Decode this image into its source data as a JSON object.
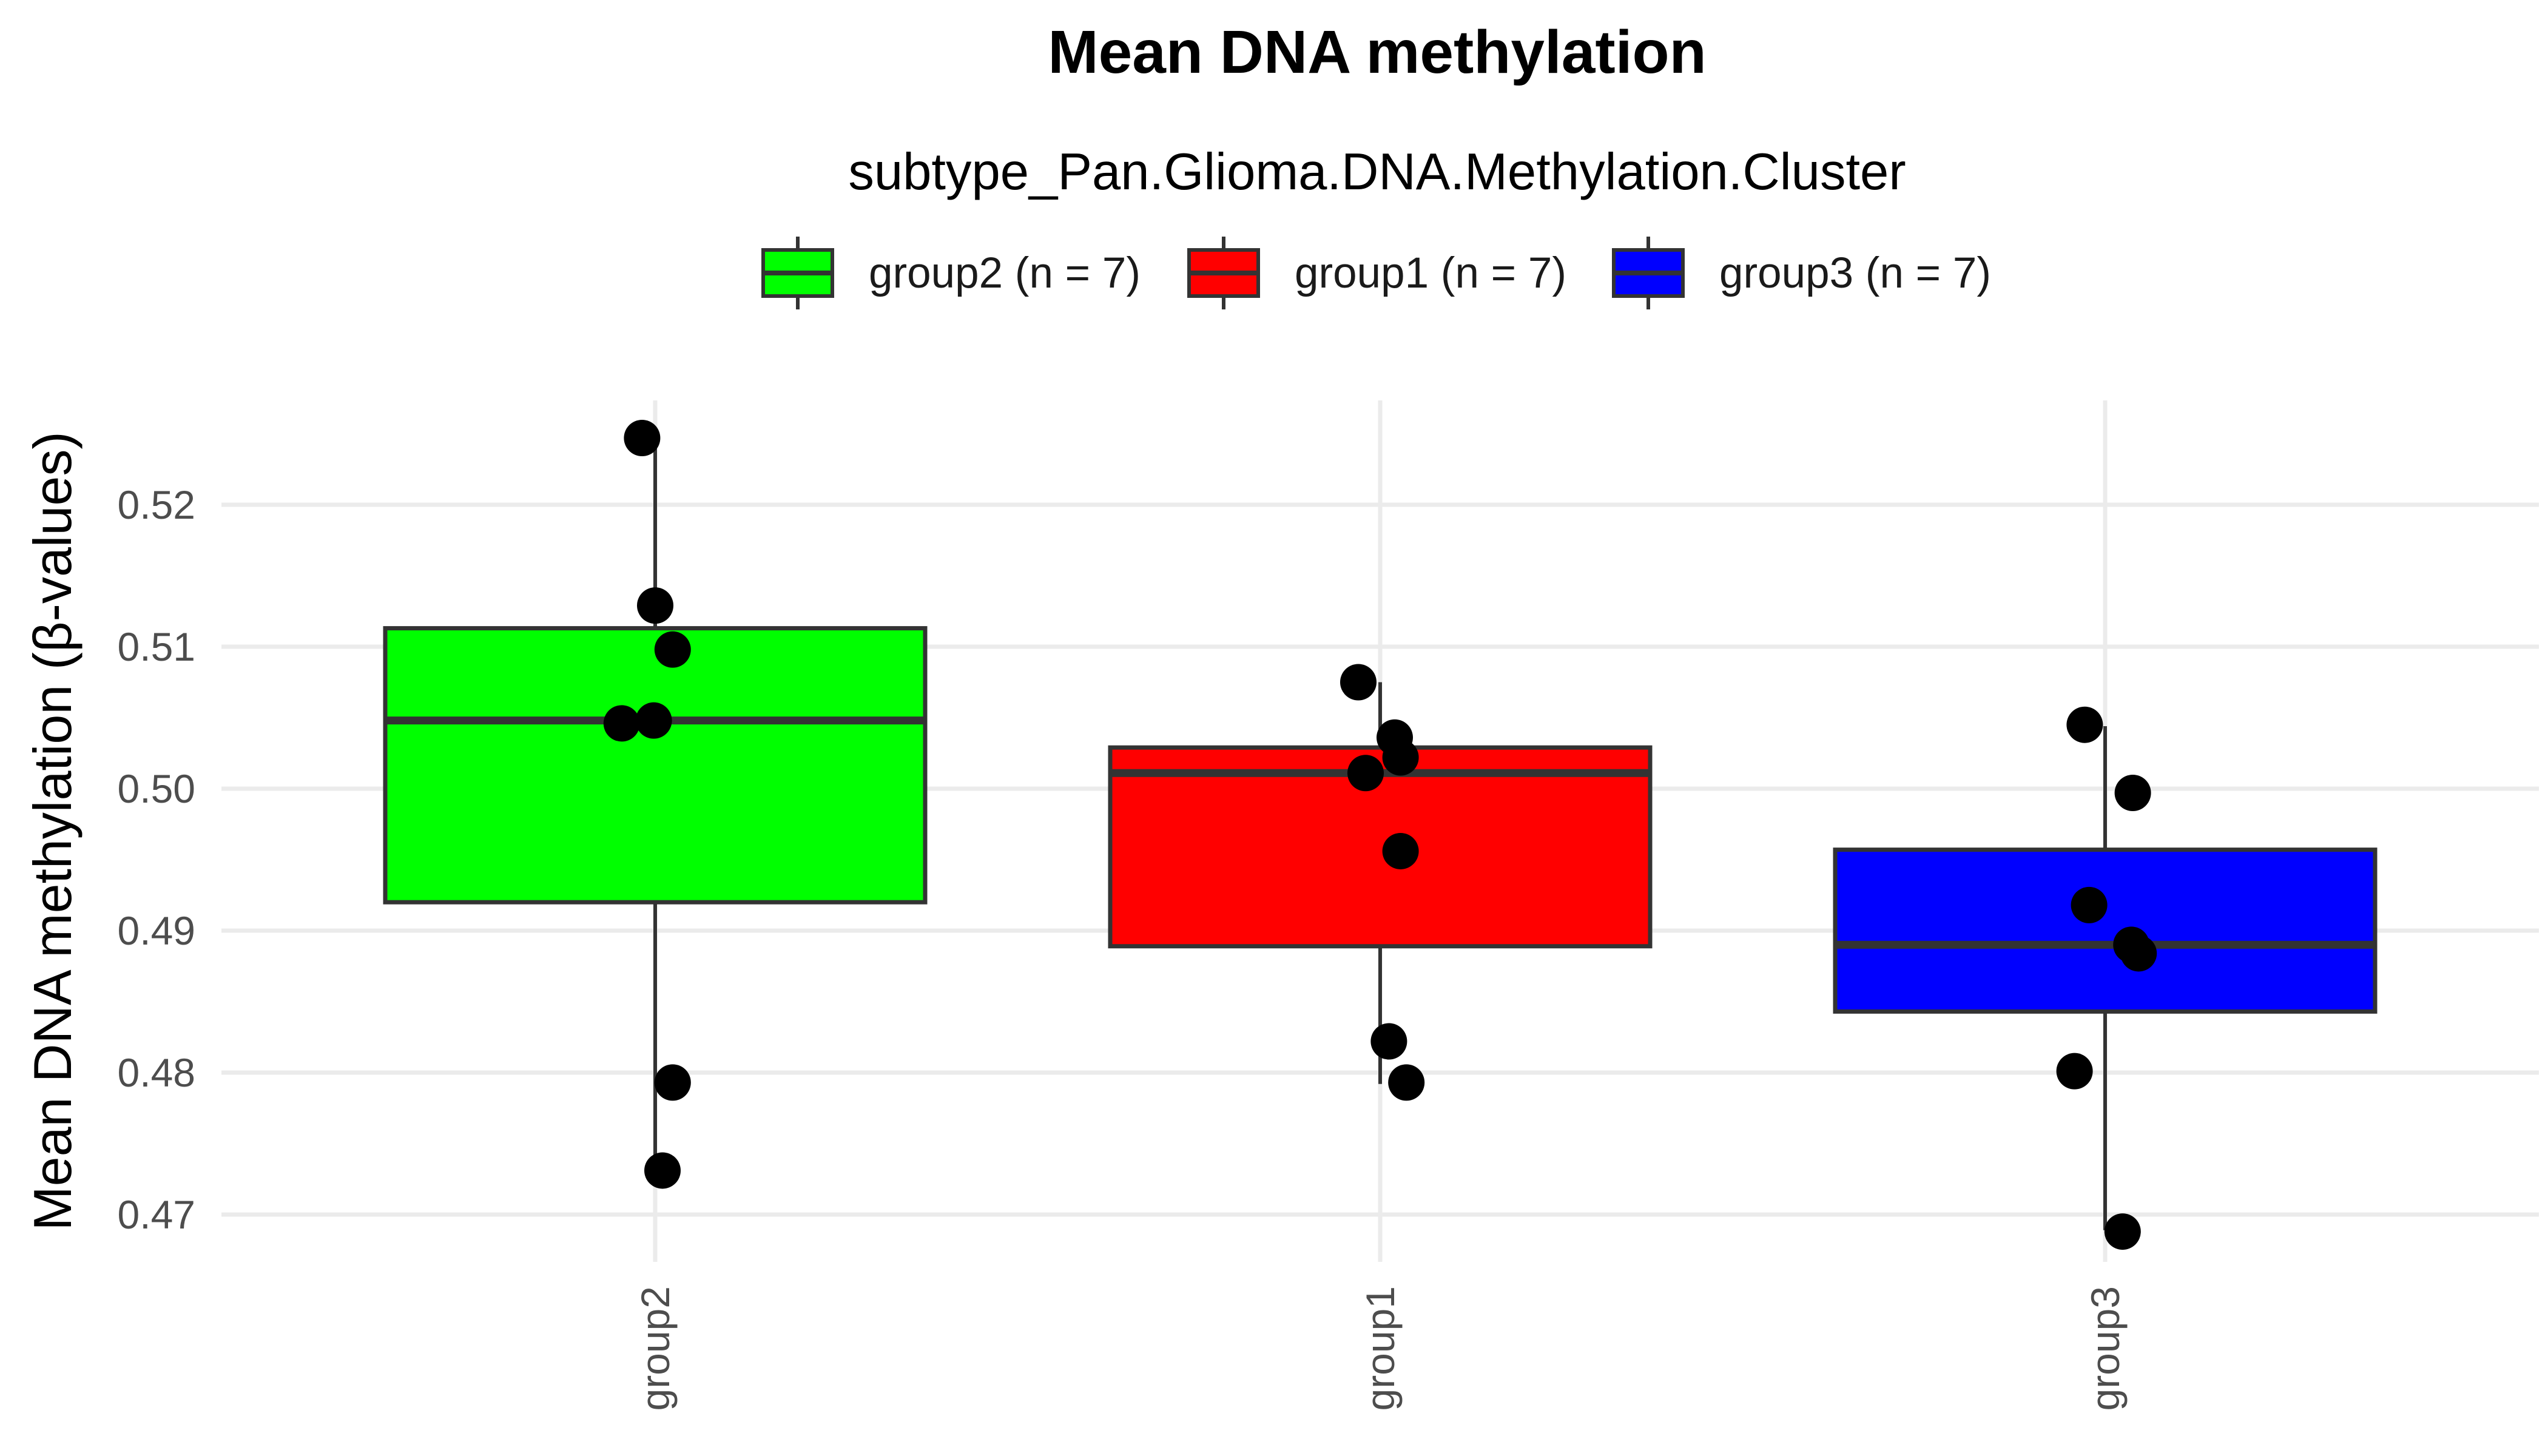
{
  "chart_data": {
    "type": "boxplot",
    "title": "Mean DNA methylation",
    "legend_title": "subtype_Pan.Glioma.DNA.Methylation.Cluster",
    "ylabel": "Mean DNA methylation (β-values)",
    "xlabel": "",
    "ylim": [
      0.4675,
      0.5275
    ],
    "yticks": [
      0.47,
      0.48,
      0.49,
      0.5,
      0.51,
      0.52
    ],
    "ytick_labels": [
      "0.47",
      "0.48",
      "0.49",
      "0.50",
      "0.51",
      "0.52"
    ],
    "grid": true,
    "legend_position": "top",
    "groups": [
      {
        "name": "group2",
        "legend_label": "group2 (n = 7)",
        "color": "#00FF00",
        "whisker_low": 0.4735,
        "q1": 0.492,
        "median": 0.5048,
        "q3": 0.5113,
        "whisker_high": 0.5248,
        "points": [
          {
            "jitter": -0.09,
            "y": 0.5247
          },
          {
            "jitter": 0.0,
            "y": 0.5129
          },
          {
            "jitter": 0.12,
            "y": 0.5098
          },
          {
            "jitter": -0.23,
            "y": 0.5046
          },
          {
            "jitter": -0.01,
            "y": 0.5048
          },
          {
            "jitter": 0.12,
            "y": 0.4793
          },
          {
            "jitter": 0.05,
            "y": 0.4731
          }
        ]
      },
      {
        "name": "group1",
        "legend_label": "group1 (n = 7)",
        "color": "#FF0000",
        "whisker_low": 0.4792,
        "q1": 0.4889,
        "median": 0.5011,
        "q3": 0.5029,
        "whisker_high": 0.5075,
        "points": [
          {
            "jitter": -0.15,
            "y": 0.5075
          },
          {
            "jitter": 0.1,
            "y": 0.5036
          },
          {
            "jitter": 0.14,
            "y": 0.5022
          },
          {
            "jitter": -0.1,
            "y": 0.5011
          },
          {
            "jitter": 0.14,
            "y": 0.4956
          },
          {
            "jitter": 0.06,
            "y": 0.4822
          },
          {
            "jitter": 0.18,
            "y": 0.4793
          }
        ]
      },
      {
        "name": "group3",
        "legend_label": "group3 (n = 7)",
        "color": "#0000FF",
        "whisker_low": 0.4689,
        "q1": 0.4843,
        "median": 0.489,
        "q3": 0.4957,
        "whisker_high": 0.5044,
        "points": [
          {
            "jitter": -0.14,
            "y": 0.5045
          },
          {
            "jitter": 0.19,
            "y": 0.4997
          },
          {
            "jitter": -0.11,
            "y": 0.4918
          },
          {
            "jitter": 0.18,
            "y": 0.489
          },
          {
            "jitter": 0.23,
            "y": 0.4884
          },
          {
            "jitter": -0.21,
            "y": 0.4801
          },
          {
            "jitter": 0.12,
            "y": 0.4688
          }
        ]
      }
    ]
  }
}
